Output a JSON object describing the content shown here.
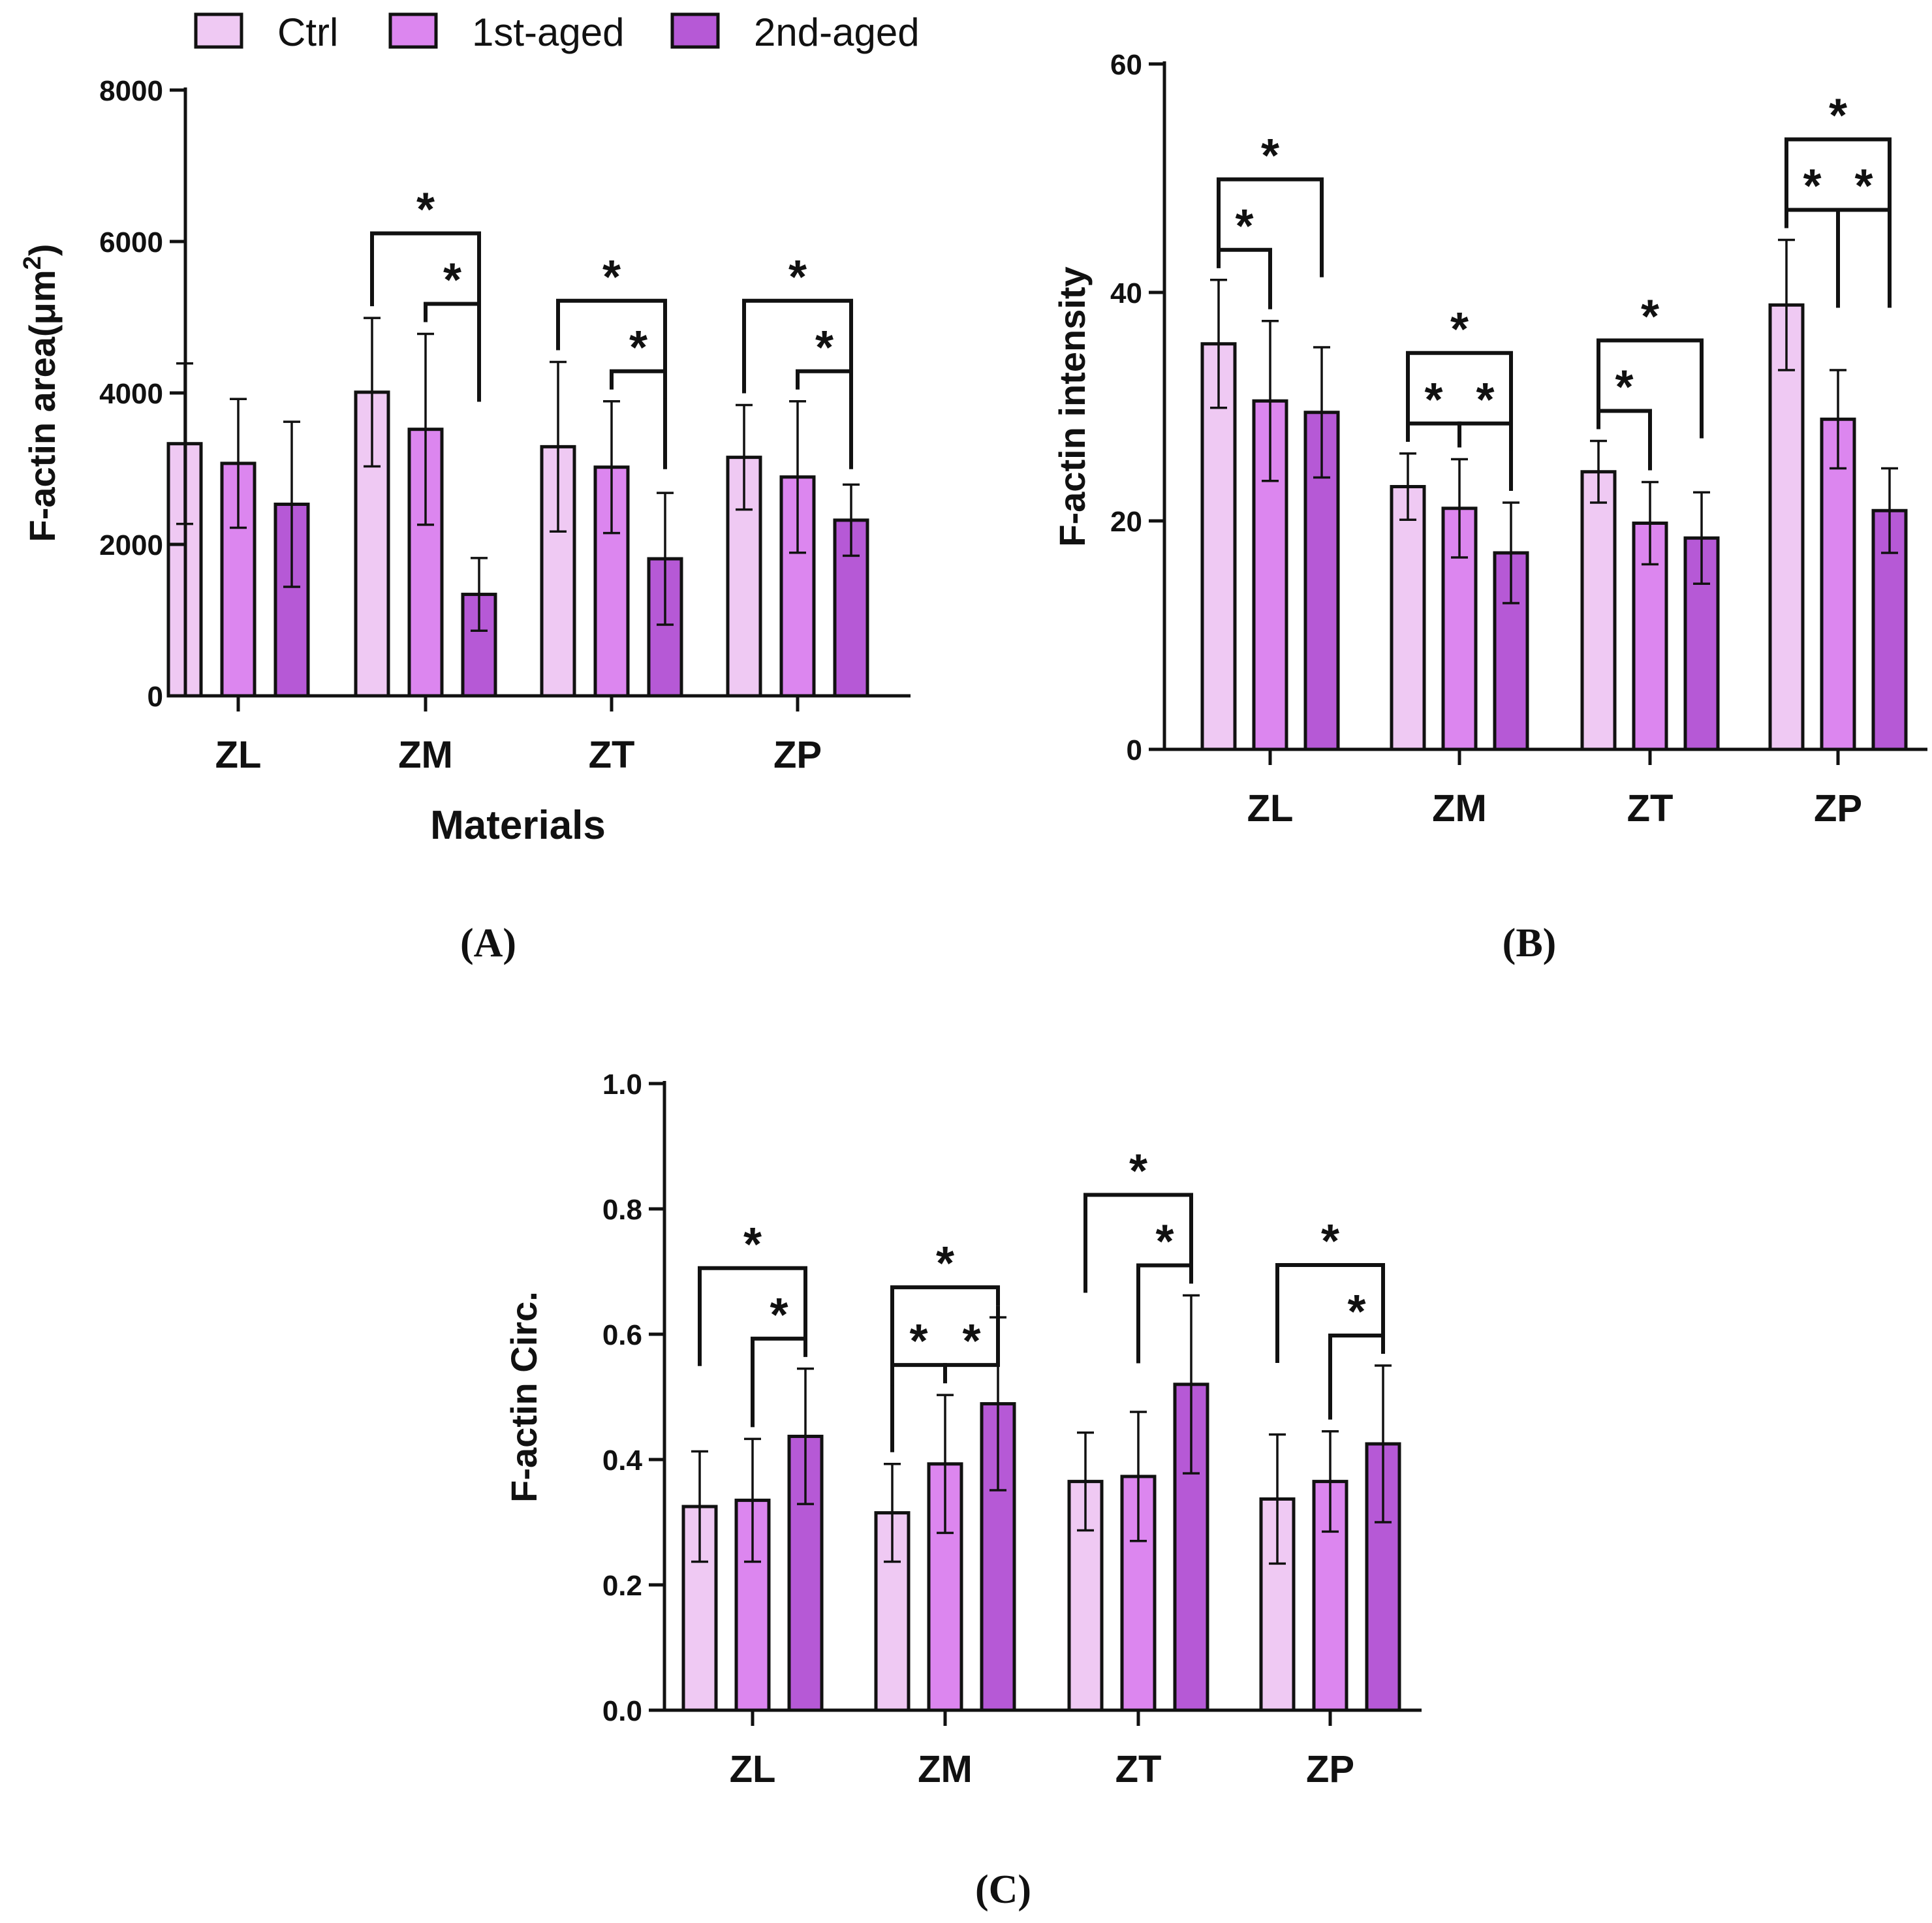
{
  "legend": {
    "items": [
      {
        "label": "Ctrl",
        "color": "#efc9f3"
      },
      {
        "label": "1st-aged",
        "color": "#dc86ef"
      },
      {
        "label": "2nd-aged",
        "color": "#b659d6"
      }
    ]
  },
  "chart_data": [
    {
      "panel_label": "(A)",
      "type": "bar",
      "ylabel": "F-actin area(μm",
      "ylabel_sup": "2",
      "ylabel_tail": ")",
      "xlabel": "Materials",
      "categories": [
        "ZL",
        "ZM",
        "ZT",
        "ZP"
      ],
      "ylim": [
        0,
        8000
      ],
      "yticks": [
        "0",
        "2000",
        "4000",
        "6000",
        "8000"
      ],
      "series": [
        {
          "name": "Ctrl",
          "values": [
            3330,
            4010,
            3290,
            3150
          ],
          "errors": [
            1060,
            980,
            1120,
            690
          ]
        },
        {
          "name": "1st-aged",
          "values": [
            3070,
            3520,
            3020,
            2890
          ],
          "errors": [
            850,
            1260,
            870,
            1000
          ]
        },
        {
          "name": "2nd-aged",
          "values": [
            2530,
            1340,
            1810,
            2320
          ],
          "errors": [
            1090,
            480,
            870,
            470
          ]
        }
      ],
      "significance": [
        {
          "group": 1,
          "from": 0,
          "to": 2,
          "label": "*"
        },
        {
          "group": 1,
          "from": 1,
          "to": 2,
          "label": "*"
        },
        {
          "group": 2,
          "from": 0,
          "to": 2,
          "label": "*"
        },
        {
          "group": 2,
          "from": 1,
          "to": 2,
          "label": "*"
        },
        {
          "group": 3,
          "from": 0,
          "to": 2,
          "label": "*"
        },
        {
          "group": 3,
          "from": 1,
          "to": 2,
          "label": "*"
        }
      ]
    },
    {
      "panel_label": "(B)",
      "type": "bar",
      "ylabel": "F-actin intensity",
      "xlabel": "",
      "categories": [
        "ZL",
        "ZM",
        "ZT",
        "ZP"
      ],
      "ylim": [
        0,
        60
      ],
      "yticks": [
        "0",
        "20",
        "40",
        "60"
      ],
      "series": [
        {
          "name": "Ctrl",
          "values": [
            35.5,
            23.0,
            24.3,
            38.9
          ],
          "errors": [
            5.6,
            2.9,
            2.7,
            5.7
          ]
        },
        {
          "name": "1st-aged",
          "values": [
            30.5,
            21.1,
            19.8,
            28.9
          ],
          "errors": [
            7.0,
            4.3,
            3.6,
            4.3
          ]
        },
        {
          "name": "2nd-aged",
          "values": [
            29.5,
            17.2,
            18.5,
            20.9
          ],
          "errors": [
            5.7,
            4.4,
            4.0,
            3.7
          ]
        }
      ],
      "significance": [
        {
          "group": 0,
          "from": 0,
          "to": 1,
          "label": "*"
        },
        {
          "group": 0,
          "from": 0,
          "to": 2,
          "label": "*"
        },
        {
          "group": 1,
          "from": 0,
          "to": 1,
          "label": "*"
        },
        {
          "group": 1,
          "from": 1,
          "to": 2,
          "label": "*"
        },
        {
          "group": 1,
          "from": 0,
          "to": 2,
          "label": "*"
        },
        {
          "group": 2,
          "from": 0,
          "to": 1,
          "label": "*"
        },
        {
          "group": 2,
          "from": 0,
          "to": 2,
          "label": "*"
        },
        {
          "group": 3,
          "from": 0,
          "to": 1,
          "label": "*"
        },
        {
          "group": 3,
          "from": 1,
          "to": 2,
          "label": "*"
        },
        {
          "group": 3,
          "from": 0,
          "to": 2,
          "label": "*"
        }
      ]
    },
    {
      "panel_label": "(C)",
      "type": "bar",
      "ylabel": "F-actin Circ.",
      "xlabel": "",
      "categories": [
        "ZL",
        "ZM",
        "ZT",
        "ZP"
      ],
      "ylim": [
        0,
        1.0
      ],
      "yticks": [
        "0.0",
        "0.2",
        "0.4",
        "0.6",
        "0.8",
        "1.0"
      ],
      "series": [
        {
          "name": "Ctrl",
          "values": [
            0.325,
            0.315,
            0.365,
            0.337
          ],
          "errors": [
            0.088,
            0.078,
            0.078,
            0.103
          ]
        },
        {
          "name": "1st-aged",
          "values": [
            0.335,
            0.393,
            0.373,
            0.365
          ],
          "errors": [
            0.098,
            0.11,
            0.103,
            0.08
          ]
        },
        {
          "name": "2nd-aged",
          "values": [
            0.437,
            0.489,
            0.52,
            0.425
          ],
          "errors": [
            0.108,
            0.138,
            0.142,
            0.125
          ]
        }
      ],
      "significance": [
        {
          "group": 0,
          "from": 1,
          "to": 2,
          "label": "*"
        },
        {
          "group": 0,
          "from": 0,
          "to": 2,
          "label": "*"
        },
        {
          "group": 1,
          "from": 0,
          "to": 1,
          "label": "*"
        },
        {
          "group": 1,
          "from": 1,
          "to": 2,
          "label": "*"
        },
        {
          "group": 1,
          "from": 0,
          "to": 2,
          "label": "*"
        },
        {
          "group": 2,
          "from": 1,
          "to": 2,
          "label": "*"
        },
        {
          "group": 2,
          "from": 0,
          "to": 2,
          "label": "*"
        },
        {
          "group": 3,
          "from": 1,
          "to": 2,
          "label": "*"
        },
        {
          "group": 3,
          "from": 0,
          "to": 2,
          "label": "*"
        }
      ]
    }
  ]
}
